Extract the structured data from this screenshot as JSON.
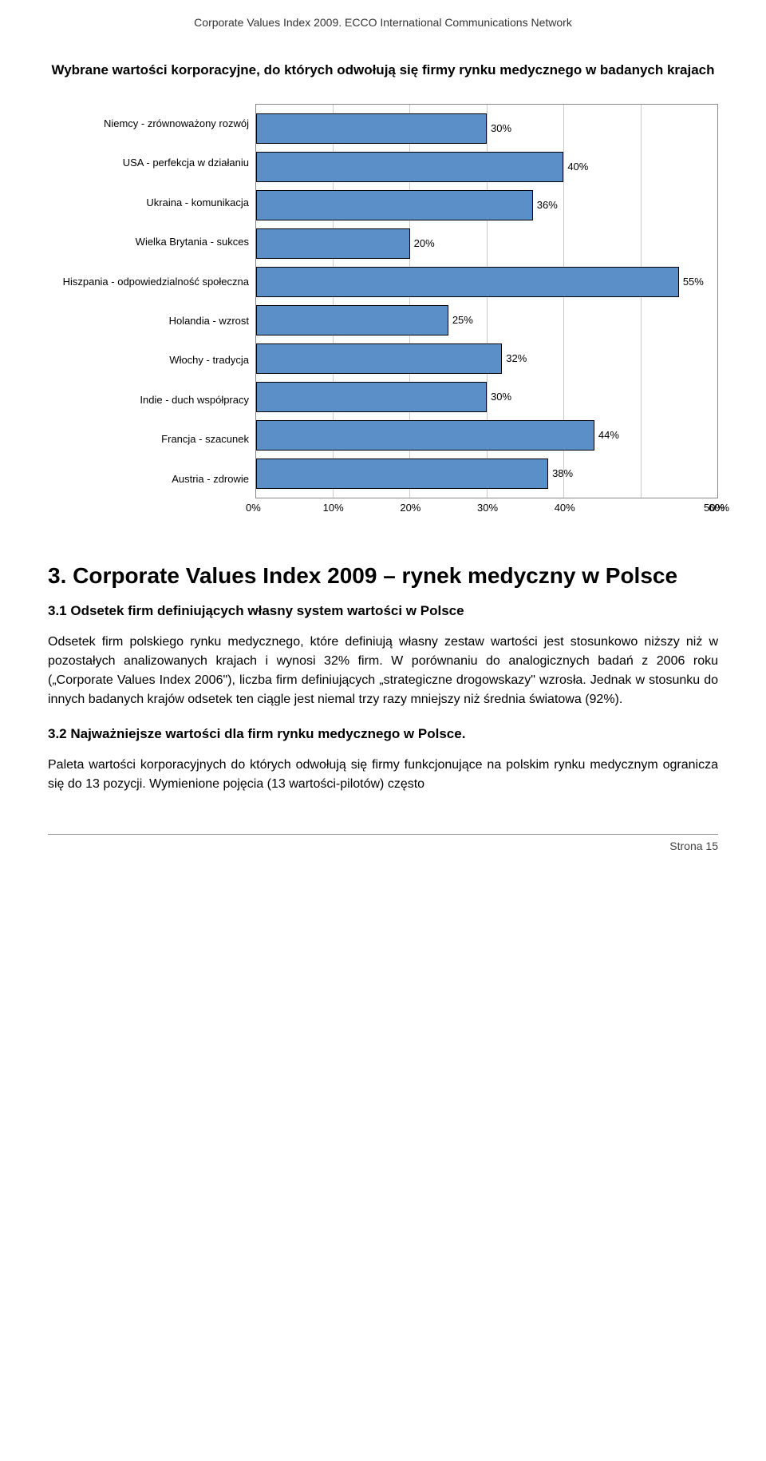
{
  "header": {
    "text": "Corporate Values Index 2009. ECCO International Communications Network"
  },
  "chart": {
    "type": "bar",
    "title": "Wybrane wartości korporacyjne, do których odwołują się firmy rynku medycznego w badanych krajach",
    "x_max": 60,
    "x_ticks": [
      "0%",
      "10%",
      "20%",
      "30%",
      "40%",
      "50%",
      "60%"
    ],
    "bar_color": "#5a8fc7",
    "bar_border": "#000000",
    "grid_color": "#cccccc",
    "background": "#ffffff",
    "label_fontsize": 13,
    "value_fontsize": 13,
    "title_fontsize": 17,
    "items": [
      {
        "label": "Niemcy - zrównoważony rozwój",
        "value": 30,
        "value_label": "30%"
      },
      {
        "label": "USA - perfekcja w działaniu",
        "value": 40,
        "value_label": "40%"
      },
      {
        "label": "Ukraina - komunikacja",
        "value": 36,
        "value_label": "36%"
      },
      {
        "label": "Wielka Brytania - sukces",
        "value": 20,
        "value_label": "20%"
      },
      {
        "label": "Hiszpania - odpowiedzialność społeczna",
        "value": 55,
        "value_label": "55%"
      },
      {
        "label": "Holandia - wzrost",
        "value": 25,
        "value_label": "25%"
      },
      {
        "label": "Włochy - tradycja",
        "value": 32,
        "value_label": "32%"
      },
      {
        "label": "Indie - duch współpracy",
        "value": 30,
        "value_label": "30%"
      },
      {
        "label": "Francja - szacunek",
        "value": 44,
        "value_label": "44%"
      },
      {
        "label": "Austria - zdrowie",
        "value": 38,
        "value_label": "38%"
      }
    ]
  },
  "section": {
    "heading": "3. Corporate Values Index 2009 – rynek medyczny w Polsce",
    "sub1_heading": "3.1 Odsetek firm definiujących własny system wartości w Polsce",
    "para1": "Odsetek firm polskiego rynku medycznego, które definiują własny zestaw wartości jest stosunkowo niższy niż w pozostałych analizowanych krajach i wynosi 32% firm. W porównaniu do analogicznych badań z 2006 roku („Corporate Values Index 2006\"), liczba firm definiujących „strategiczne drogowskazy\" wzrosła. Jednak w stosunku do innych badanych krajów odsetek ten ciągle jest niemal trzy razy mniejszy niż średnia światowa (92%).",
    "sub2_heading": "3.2 Najważniejsze wartości dla firm rynku medycznego w Polsce.",
    "para2": "Paleta wartości korporacyjnych do których odwołują się firmy funkcjonujące na polskim rynku medycznym ogranicza się do 13 pozycji. Wymienione pojęcia (13 wartości-pilotów) często"
  },
  "footer": {
    "text": "Strona 15"
  }
}
